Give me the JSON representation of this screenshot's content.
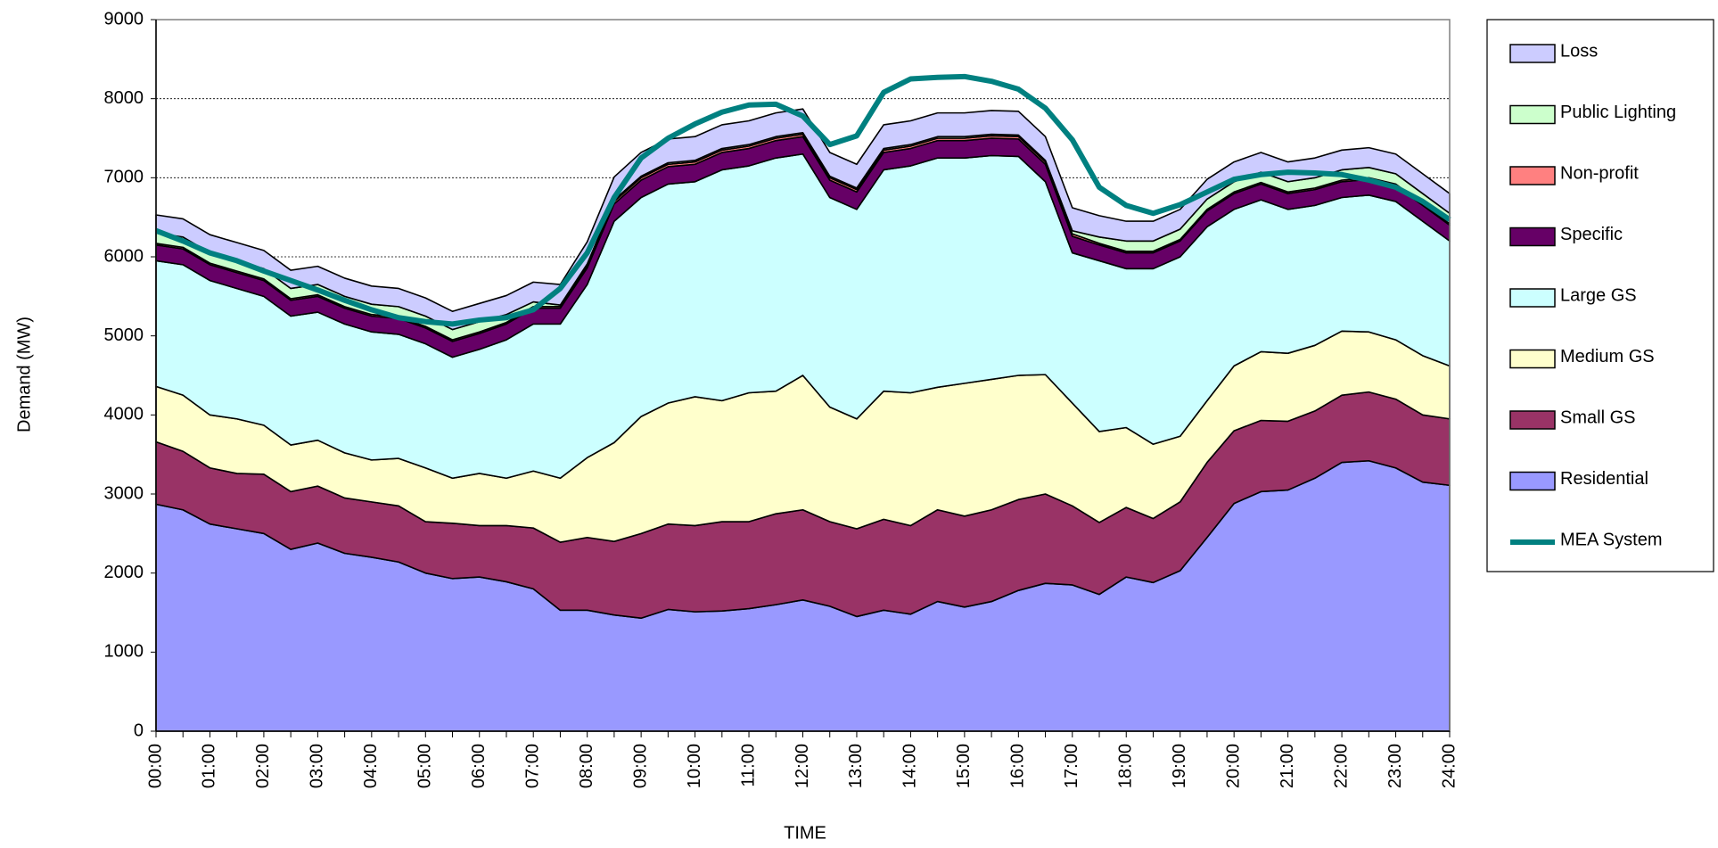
{
  "chart_data": {
    "type": "area",
    "stacked": true,
    "x_label": "TIME",
    "y_label": "Demand (MW)",
    "categories": [
      "00:00",
      null,
      "01:00",
      null,
      "02:00",
      null,
      "03:00",
      null,
      "04:00",
      null,
      "05:00",
      null,
      "06:00",
      null,
      "07:00",
      null,
      "08:00",
      null,
      "09:00",
      null,
      "10:00",
      null,
      "11:00",
      null,
      "12:00",
      null,
      "13:00",
      null,
      "14:00",
      null,
      "15:00",
      null,
      "16:00",
      null,
      "17:00",
      null,
      "18:00",
      null,
      "19:00",
      null,
      "20:00",
      null,
      "21:00",
      null,
      "22:00",
      null,
      "23:00",
      null,
      "24:00"
    ],
    "ylim": [
      0,
      9000
    ],
    "yticks": [
      0,
      1000,
      2000,
      3000,
      4000,
      5000,
      6000,
      7000,
      8000,
      9000
    ],
    "grid": true,
    "legend": "right",
    "series": [
      {
        "name": "Residential",
        "color": "#9999ff",
        "type": "area",
        "values": [
          2870,
          2800,
          2620,
          2560,
          2500,
          2300,
          2380,
          2250,
          2200,
          2140,
          2000,
          1930,
          1950,
          1890,
          1800,
          1530,
          1530,
          1470,
          1430,
          1540,
          1510,
          1520,
          1550,
          1600,
          1660,
          1580,
          1450,
          1530,
          1480,
          1640,
          1570,
          1640,
          1780,
          1870,
          1850,
          1730,
          1950,
          1880,
          2030,
          2450,
          2880,
          3030,
          3050,
          3200,
          3400,
          3420,
          3330,
          3150,
          3110
        ]
      },
      {
        "name": "Small GS",
        "color": "#993366",
        "type": "area",
        "values": [
          790,
          740,
          710,
          700,
          750,
          730,
          720,
          700,
          700,
          710,
          650,
          700,
          650,
          710,
          770,
          860,
          920,
          930,
          1070,
          1080,
          1090,
          1130,
          1100,
          1150,
          1140,
          1070,
          1110,
          1150,
          1120,
          1160,
          1150,
          1160,
          1150,
          1130,
          1000,
          910,
          880,
          810,
          870,
          950,
          920,
          900,
          870,
          850,
          850,
          870,
          870,
          850,
          840
        ]
      },
      {
        "name": "Medium GS",
        "color": "#ffffcc",
        "type": "area",
        "values": [
          700,
          710,
          670,
          690,
          620,
          590,
          580,
          570,
          530,
          600,
          680,
          570,
          660,
          600,
          720,
          810,
          1010,
          1250,
          1480,
          1530,
          1630,
          1530,
          1630,
          1550,
          1700,
          1450,
          1390,
          1620,
          1680,
          1550,
          1680,
          1650,
          1570,
          1510,
          1300,
          1150,
          1010,
          940,
          830,
          780,
          820,
          870,
          860,
          830,
          810,
          760,
          750,
          750,
          670
        ]
      },
      {
        "name": "Large GS",
        "color": "#ccffff",
        "type": "area",
        "values": [
          1590,
          1650,
          1700,
          1650,
          1630,
          1630,
          1620,
          1630,
          1620,
          1570,
          1570,
          1530,
          1570,
          1750,
          1860,
          1950,
          2190,
          2800,
          2770,
          2770,
          2720,
          2920,
          2870,
          2950,
          2800,
          2650,
          2650,
          2800,
          2870,
          2900,
          2850,
          2830,
          2770,
          2440,
          1900,
          2160,
          2010,
          2220,
          2270,
          2200,
          1980,
          1920,
          1820,
          1770,
          1690,
          1730,
          1750,
          1700,
          1580
        ]
      },
      {
        "name": "Specific",
        "color": "#660066",
        "type": "area",
        "values": [
          200,
          200,
          200,
          200,
          200,
          200,
          200,
          200,
          200,
          200,
          200,
          200,
          200,
          200,
          200,
          200,
          210,
          220,
          220,
          220,
          220,
          220,
          220,
          220,
          220,
          220,
          220,
          220,
          220,
          220,
          220,
          220,
          220,
          220,
          210,
          200,
          200,
          200,
          200,
          200,
          200,
          200,
          200,
          200,
          200,
          200,
          200,
          200,
          200
        ]
      },
      {
        "name": "Non-profit",
        "color": "#ff8080",
        "type": "area",
        "values": [
          20,
          20,
          20,
          20,
          20,
          20,
          20,
          20,
          20,
          20,
          20,
          20,
          20,
          20,
          20,
          20,
          30,
          30,
          30,
          30,
          30,
          30,
          30,
          30,
          30,
          30,
          30,
          30,
          30,
          30,
          30,
          30,
          30,
          30,
          30,
          20,
          20,
          20,
          20,
          20,
          20,
          20,
          20,
          20,
          20,
          20,
          20,
          20,
          20
        ]
      },
      {
        "name": "Public Lighting",
        "color": "#ccffcc",
        "type": "area",
        "values": [
          130,
          130,
          130,
          130,
          130,
          130,
          130,
          130,
          130,
          130,
          130,
          130,
          130,
          100,
          60,
          20,
          20,
          20,
          20,
          20,
          20,
          20,
          20,
          20,
          20,
          20,
          20,
          20,
          20,
          20,
          20,
          20,
          20,
          20,
          40,
          80,
          130,
          130,
          130,
          130,
          130,
          130,
          130,
          130,
          130,
          130,
          130,
          130,
          130
        ]
      },
      {
        "name": "Loss",
        "color": "#ccccff",
        "type": "area",
        "values": [
          230,
          230,
          230,
          230,
          230,
          230,
          230,
          230,
          230,
          230,
          230,
          230,
          230,
          240,
          250,
          260,
          280,
          290,
          300,
          300,
          300,
          300,
          300,
          300,
          300,
          300,
          300,
          300,
          300,
          300,
          300,
          300,
          300,
          300,
          290,
          270,
          250,
          250,
          250,
          250,
          250,
          250,
          250,
          250,
          250,
          250,
          250,
          250,
          250
        ]
      },
      {
        "name": "MEA System",
        "color": "#008080",
        "type": "line",
        "values": [
          6330,
          6200,
          6050,
          5950,
          5820,
          5700,
          5580,
          5450,
          5330,
          5230,
          5180,
          5150,
          5200,
          5230,
          5330,
          5600,
          6050,
          6750,
          7250,
          7500,
          7680,
          7830,
          7920,
          7930,
          7780,
          7420,
          7530,
          8080,
          8250,
          8270,
          8280,
          8220,
          8120,
          7880,
          7480,
          6880,
          6650,
          6550,
          6660,
          6820,
          6980,
          7040,
          7070,
          7060,
          7040,
          6970,
          6880,
          6700,
          6470
        ]
      }
    ]
  }
}
